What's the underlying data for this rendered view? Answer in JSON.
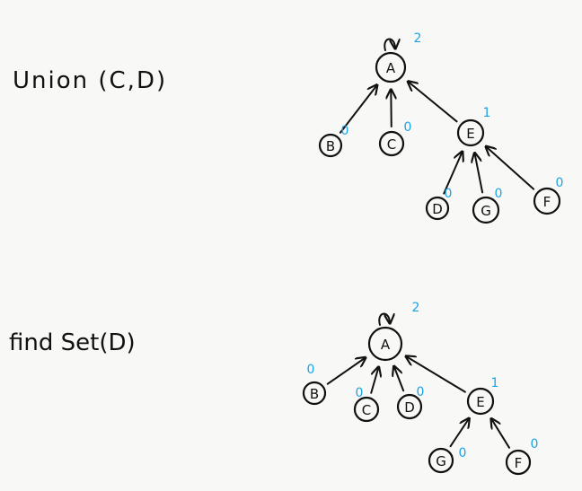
{
  "panels": [
    {
      "id": "union",
      "operation": "Union (C,D)",
      "nodes": [
        {
          "id": "A",
          "label": "A",
          "rank": "2"
        },
        {
          "id": "B",
          "label": "B",
          "rank": "0"
        },
        {
          "id": "C",
          "label": "C",
          "rank": "0"
        },
        {
          "id": "E",
          "label": "E",
          "rank": "1"
        },
        {
          "id": "D",
          "label": "D",
          "rank": "0"
        },
        {
          "id": "G",
          "label": "G",
          "rank": "0"
        },
        {
          "id": "F",
          "label": "F",
          "rank": "0"
        }
      ],
      "edges": [
        {
          "from": "B",
          "to": "A"
        },
        {
          "from": "C",
          "to": "A"
        },
        {
          "from": "E",
          "to": "A"
        },
        {
          "from": "D",
          "to": "E"
        },
        {
          "from": "G",
          "to": "E"
        },
        {
          "from": "F",
          "to": "E"
        }
      ],
      "root": "A"
    },
    {
      "id": "findset",
      "operation": "find Set(D)",
      "nodes": [
        {
          "id": "A",
          "label": "A",
          "rank": "2"
        },
        {
          "id": "B",
          "label": "B",
          "rank": "0"
        },
        {
          "id": "C",
          "label": "C",
          "rank": "0"
        },
        {
          "id": "D",
          "label": "D",
          "rank": "0"
        },
        {
          "id": "E",
          "label": "E",
          "rank": "1"
        },
        {
          "id": "G",
          "label": "G",
          "rank": "0"
        },
        {
          "id": "F",
          "label": "F",
          "rank": "0"
        }
      ],
      "edges": [
        {
          "from": "B",
          "to": "A"
        },
        {
          "from": "C",
          "to": "A"
        },
        {
          "from": "D",
          "to": "A"
        },
        {
          "from": "E",
          "to": "A"
        },
        {
          "from": "G",
          "to": "E"
        },
        {
          "from": "F",
          "to": "E"
        }
      ],
      "root": "A"
    }
  ]
}
